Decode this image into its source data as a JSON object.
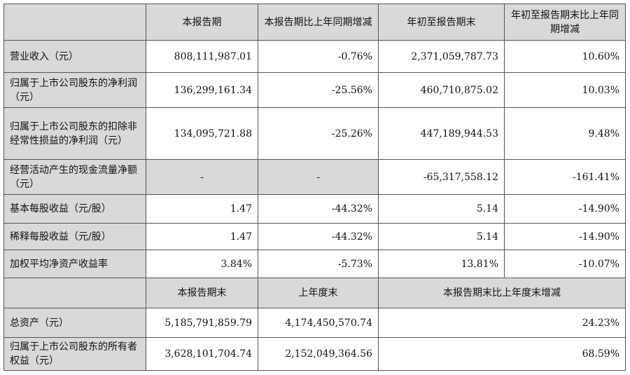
{
  "header": {
    "col1": "本报告期",
    "col2": "本报告期比上年同期增减",
    "col3": "年初至报告期末",
    "col4": "年初至报告期末比上年同期增减"
  },
  "rows": [
    {
      "label": "营业收入（元）",
      "v1": "808,111,987.01",
      "v2": "-0.76%",
      "v3": "2,371,059,787.73",
      "v4": "10.60%"
    },
    {
      "label": "归属于上市公司股东的净利润（元）",
      "v1": "136,299,161.34",
      "v2": "-25.56%",
      "v3": "460,710,875.02",
      "v4": "10.03%"
    },
    {
      "label": "归属于上市公司股东的扣除非经常性损益的净利润（元）",
      "v1": "134,095,721.88",
      "v2": "-25.26%",
      "v3": "447,189,944.53",
      "v4": "9.48%"
    },
    {
      "label": "经营活动产生的现金流量净额（元）",
      "v1": "-",
      "v2": "-",
      "v3": "-65,317,558.12",
      "v4": "-161.41%"
    },
    {
      "label": "基本每股收益（元/股）",
      "v1": "1.47",
      "v2": "-44.32%",
      "v3": "5.14",
      "v4": "-14.90%"
    },
    {
      "label": "稀释每股收益（元/股）",
      "v1": "1.47",
      "v2": "-44.32%",
      "v3": "5.14",
      "v4": "-14.90%"
    },
    {
      "label": "加权平均净资产收益率",
      "v1": "3.84%",
      "v2": "-5.73%",
      "v3": "13.81%",
      "v4": "-10.07%"
    }
  ],
  "header2": {
    "col1": "本报告期末",
    "col2": "上年度末",
    "col3": "本报告期末比上年度末增减"
  },
  "rows2": [
    {
      "label": "总资产（元）",
      "v1": "5,185,791,859.79",
      "v2": "4,174,450,570.74",
      "v3": "24.23%"
    },
    {
      "label": "归属于上市公司股东的所有者权益（元）",
      "v1": "3,628,101,704.74",
      "v2": "2,152,049,364.56",
      "v3": "68.59%"
    }
  ]
}
